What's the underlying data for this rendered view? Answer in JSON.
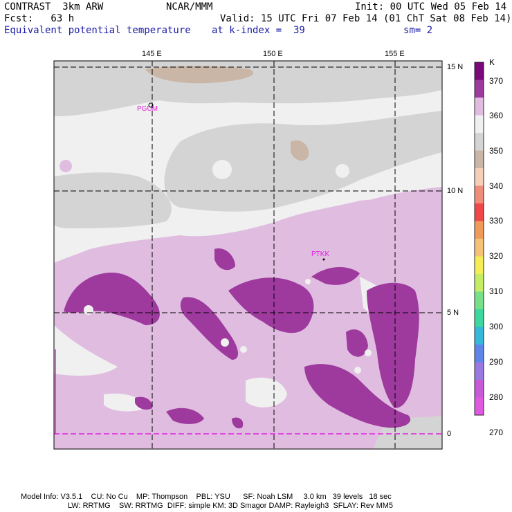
{
  "header": {
    "line1_left": "CONTRAST  3km ARW",
    "line1_mid": "NCAR/MMM",
    "line1_right": "Init: 00 UTC Wed 05 Feb 14",
    "line2_left": "Fcst:   63 h",
    "line2_right": "Valid: 15 UTC Fri 07 Feb 14 (01 ChT Sat 08 Feb 14)",
    "line3_left": "Equivalent potential temperature",
    "line3_mid": "at k-index =  39",
    "line3_right": "sm= 2"
  },
  "map": {
    "lon_labels": [
      "145 E",
      "150 E",
      "155 E"
    ],
    "lat_labels": [
      "15 N",
      "10 N",
      "5 N",
      "0"
    ],
    "stations": [
      "PGUM",
      "PTKK"
    ]
  },
  "colorbar": {
    "unit": "K",
    "levels": [
      "370",
      "360",
      "350",
      "340",
      "330",
      "320",
      "310",
      "300",
      "290",
      "280",
      "270"
    ],
    "colors": [
      "#7a0a7a",
      "#9e3a9e",
      "#e0bde0",
      "#f0f0f0",
      "#d4d4d4",
      "#c9b6a6",
      "#f5cfb8",
      "#f08d7a",
      "#f04848",
      "#f09a5a",
      "#f5c278",
      "#f5ed55",
      "#c4ec64",
      "#78e088",
      "#3cd8a0",
      "#36b8d8",
      "#5d86e8",
      "#9a7ae0",
      "#c85ad8",
      "#e05ae0"
    ]
  },
  "footer": {
    "line1": "Model Info: V3.5.1    CU: No Cu    MP: Thompson    PBL: YSU      SF: Noah LSM     3.0 km   39 levels   18 sec",
    "line2": "LW: RRTMG    SW: RRTMG  DIFF: simple KM: 3D Smagor DAMP: Rayleigh3  SFLAY: Rev MM5"
  }
}
